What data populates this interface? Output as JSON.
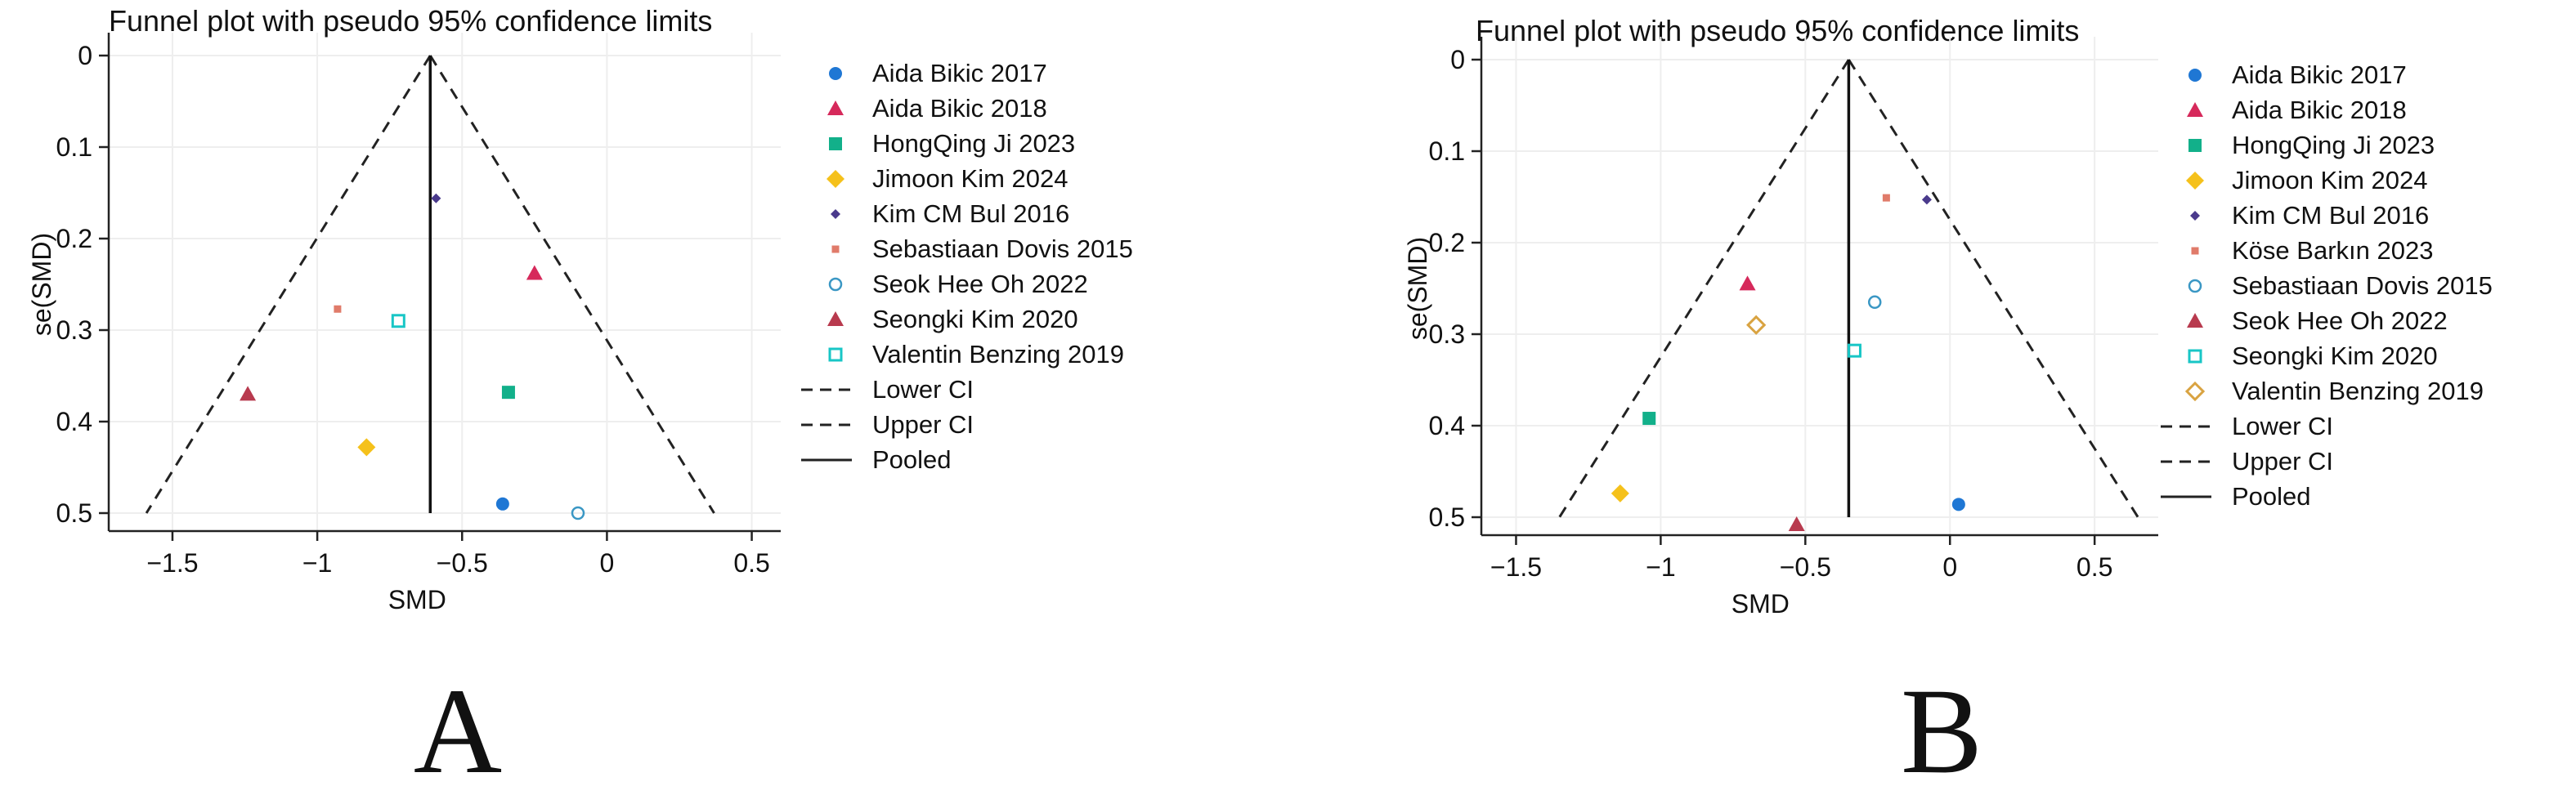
{
  "chart_data": [
    {
      "type": "scatter",
      "panel_label": "A",
      "title": "Funnel plot with pseudo 95% confidence limits",
      "xlabel": "SMD",
      "ylabel": "se(SMD)",
      "xlim": [
        -1.72,
        0.6
      ],
      "ylim": [
        0,
        0.5
      ],
      "y_reversed": true,
      "xticks": [
        -1.5,
        -1,
        -0.5,
        0,
        0.5
      ],
      "xtick_labels": [
        "−1.5",
        "−1",
        "−0.5",
        "0",
        "0.5"
      ],
      "yticks": [
        0,
        0.1,
        0.2,
        0.3,
        0.4,
        0.5
      ],
      "ytick_labels": [
        "0",
        "0.1",
        "0.2",
        "0.3",
        "0.4",
        "0.5"
      ],
      "grid": true,
      "legend_position": "right",
      "pooled": -0.61,
      "ci_lower_at_max_se": -1.59,
      "ci_upper_at_max_se": 0.37,
      "series": [
        {
          "name": "Aida Bikic 2017",
          "marker": "circle",
          "color": "#1f77d4",
          "x": -0.36,
          "y": 0.49
        },
        {
          "name": "Aida Bikic 2018",
          "marker": "triangle",
          "color": "#d6295b",
          "x": -0.25,
          "y": 0.238
        },
        {
          "name": "HongQing Ji 2023",
          "marker": "square",
          "color": "#12b08a",
          "x": -0.34,
          "y": 0.368
        },
        {
          "name": "Jimoon Kim 2024",
          "marker": "diamond",
          "color": "#f5c11b",
          "x": -0.83,
          "y": 0.428
        },
        {
          "name": "Kim CM Bul 2016",
          "marker": "small-diamond",
          "color": "#4a3a8c",
          "x": -0.59,
          "y": 0.156
        },
        {
          "name": "Sebastiaan Dovis 2015",
          "marker": "small-square",
          "color": "#e07b6a",
          "x": -0.93,
          "y": 0.277
        },
        {
          "name": "Seok Hee Oh 2022",
          "marker": "hollow-circle",
          "color": "#3a97c4",
          "x": -0.1,
          "y": 0.5
        },
        {
          "name": "Seongki Kim 2020",
          "marker": "triangle",
          "color": "#b83a4e",
          "x": -1.24,
          "y": 0.37
        },
        {
          "name": "Valentin Benzing 2019",
          "marker": "hollow-square",
          "color": "#18c6c6",
          "x": -0.72,
          "y": 0.29
        }
      ],
      "lines": [
        {
          "name": "Lower CI",
          "style": "dashed"
        },
        {
          "name": "Upper CI",
          "style": "dashed"
        },
        {
          "name": "Pooled",
          "style": "solid"
        }
      ]
    },
    {
      "type": "scatter",
      "panel_label": "B",
      "title": "Funnel plot with pseudo 95% confidence limits",
      "xlabel": "SMD",
      "ylabel": "se(SMD)",
      "xlim": [
        -1.62,
        0.72
      ],
      "ylim": [
        0,
        0.5
      ],
      "y_reversed": true,
      "xticks": [
        -1.5,
        -1,
        -0.5,
        0,
        0.5
      ],
      "xtick_labels": [
        "−1.5",
        "−1",
        "−0.5",
        "0",
        "0.5"
      ],
      "yticks": [
        0,
        0.1,
        0.2,
        0.3,
        0.4,
        0.5
      ],
      "ytick_labels": [
        "0",
        "0.1",
        "0.2",
        "0.3",
        "0.4",
        "0.5"
      ],
      "grid": true,
      "legend_position": "right",
      "pooled": -0.35,
      "ci_lower_at_max_se": -1.35,
      "ci_upper_at_max_se": 0.65,
      "series": [
        {
          "name": "Aida Bikic 2017",
          "marker": "circle",
          "color": "#1f77d4",
          "x": 0.03,
          "y": 0.486
        },
        {
          "name": "Aida Bikic 2018",
          "marker": "triangle",
          "color": "#d6295b",
          "x": -0.7,
          "y": 0.245
        },
        {
          "name": "HongQing Ji 2023",
          "marker": "square",
          "color": "#12b08a",
          "x": -1.04,
          "y": 0.392
        },
        {
          "name": "Jimoon Kim 2024",
          "marker": "diamond",
          "color": "#f5c11b",
          "x": -1.14,
          "y": 0.474
        },
        {
          "name": "Kim CM Bul 2016",
          "marker": "small-diamond",
          "color": "#4a3a8c",
          "x": -0.08,
          "y": 0.153
        },
        {
          "name": "Köse Barkın 2023",
          "marker": "small-square",
          "color": "#e07b6a",
          "x": -0.22,
          "y": 0.151
        },
        {
          "name": "Sebastiaan Dovis 2015",
          "marker": "hollow-circle",
          "color": "#3a97c4",
          "x": -0.26,
          "y": 0.265
        },
        {
          "name": "Seok Hee Oh 2022",
          "marker": "triangle",
          "color": "#b83a4e",
          "x": -0.53,
          "y": 0.508
        },
        {
          "name": "Seongki Kim 2020",
          "marker": "hollow-square",
          "color": "#18c6c6",
          "x": -0.33,
          "y": 0.318
        },
        {
          "name": "Valentin Benzing 2019",
          "marker": "hollow-diamond",
          "color": "#d9a341",
          "x": -0.67,
          "y": 0.29
        }
      ],
      "lines": [
        {
          "name": "Lower CI",
          "style": "dashed"
        },
        {
          "name": "Upper CI",
          "style": "dashed"
        },
        {
          "name": "Pooled",
          "style": "solid"
        }
      ]
    }
  ]
}
